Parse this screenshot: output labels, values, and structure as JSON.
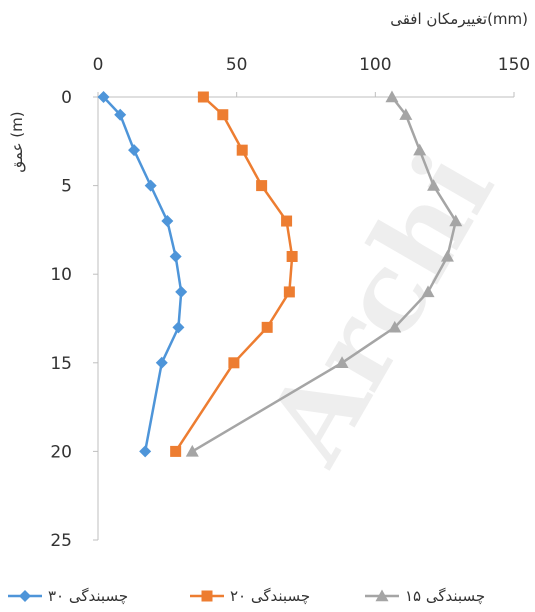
{
  "watermark": "Archi",
  "chart_data": {
    "type": "line",
    "xlabel": "تغییرمکان افقی(mm)",
    "ylabel": "عمق (m)",
    "xlim": [
      0,
      150
    ],
    "ylim": [
      0,
      25
    ],
    "y_inverted": true,
    "x_axis_position": "top",
    "x_ticks": [
      "0",
      "50",
      "100",
      "150"
    ],
    "y_ticks": [
      "0",
      "5",
      "10",
      "15",
      "20",
      "25"
    ],
    "grid": false,
    "legend_position": "bottom",
    "series": [
      {
        "name": "چسبندگی ۳۰",
        "color": "#4E95D9",
        "marker": "diamond",
        "points": [
          [
            2,
            0
          ],
          [
            8,
            1
          ],
          [
            13,
            3
          ],
          [
            19,
            5
          ],
          [
            25,
            7
          ],
          [
            28,
            9
          ],
          [
            30,
            11
          ],
          [
            29,
            13
          ],
          [
            23,
            15
          ],
          [
            17,
            20
          ]
        ]
      },
      {
        "name": "چسبندگی ۲۰",
        "color": "#ED7D31",
        "marker": "square",
        "points": [
          [
            38,
            0
          ],
          [
            45,
            1
          ],
          [
            52,
            3
          ],
          [
            59,
            5
          ],
          [
            68,
            7
          ],
          [
            70,
            9
          ],
          [
            69,
            11
          ],
          [
            61,
            13
          ],
          [
            49,
            15
          ],
          [
            28,
            20
          ]
        ]
      },
      {
        "name": "چسبندگی ۱۵",
        "color": "#A5A5A5",
        "marker": "triangle",
        "points": [
          [
            106,
            0
          ],
          [
            111,
            1
          ],
          [
            116,
            3
          ],
          [
            121,
            5
          ],
          [
            129,
            7
          ],
          [
            126,
            9
          ],
          [
            119,
            11
          ],
          [
            107,
            13
          ],
          [
            88,
            15
          ],
          [
            34,
            20
          ]
        ]
      }
    ]
  }
}
